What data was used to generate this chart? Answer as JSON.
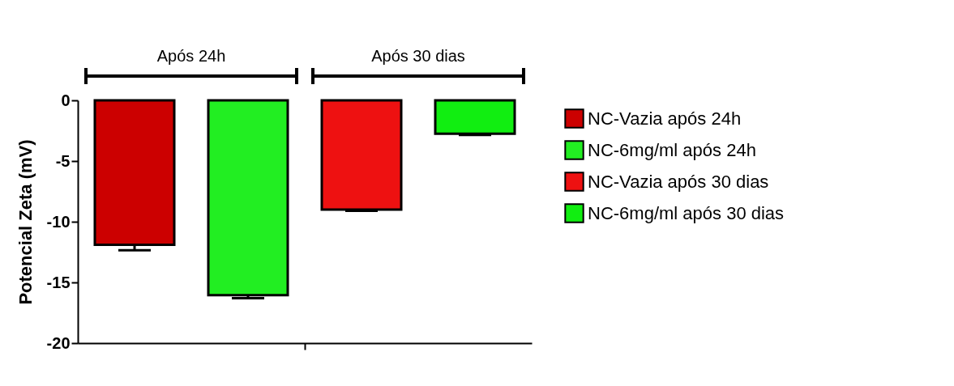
{
  "chart_data": {
    "type": "bar",
    "ylabel": "Potencial Zeta (mV)",
    "categories": [
      null
    ],
    "series": [
      {
        "name": "NC-Vazia após 24h",
        "color": "#cc0000",
        "values": [
          -11.9
        ],
        "errors": [
          [
            -12.35,
            -11.9
          ]
        ]
      },
      {
        "name": "NC-6mg/ml após 24h",
        "color": "#22ee22",
        "values": [
          -16.05
        ],
        "errors": [
          [
            -16.3,
            -16.05
          ]
        ]
      },
      {
        "name": "NC-Vazia após 30 dias",
        "color": "#ee1111",
        "values": [
          -9.0
        ],
        "errors": [
          [
            -9.1,
            -9.0
          ]
        ]
      },
      {
        "name": "NC-6mg/ml após 30 dias",
        "color": "#11ee11",
        "values": [
          -2.75
        ],
        "errors": [
          [
            -2.85,
            -2.75
          ]
        ]
      }
    ],
    "ylim": [
      -20,
      0
    ],
    "yticks": [
      0,
      -5,
      -10,
      -15,
      -20
    ],
    "grid": false,
    "legend": "right",
    "annotations": [
      "Após 24h",
      "Após 30 dias"
    ]
  }
}
